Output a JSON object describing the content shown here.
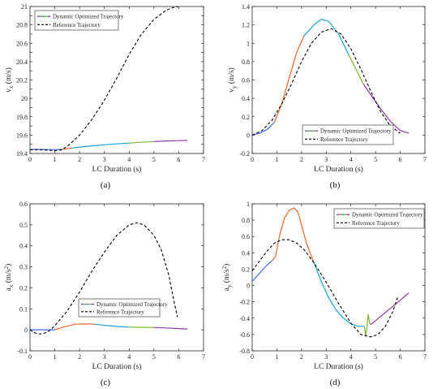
{
  "chart_data": [
    {
      "type": "line",
      "panel": "a",
      "caption": "(a)",
      "xlabel": "LC Duration (s)",
      "ylabel": "v",
      "ylabel_sub": "x",
      "ylabel_unit": "(m/s)",
      "xlim": [
        0,
        7
      ],
      "ylim": [
        19.4,
        21
      ],
      "x_ticks": [
        0,
        1,
        2,
        3,
        4,
        5,
        6,
        7
      ],
      "y_ticks": [
        19.4,
        19.5,
        19.6,
        19.7,
        19.8,
        19.9,
        20,
        20.1,
        20.2,
        20.3,
        20.4,
        20.5,
        20.6,
        20.7,
        20.8,
        20.9,
        21
      ],
      "x_tick_labels": [
        "0",
        "1",
        "2",
        "3",
        "4",
        "5",
        "6",
        "7"
      ],
      "y_tick_labels": [
        "19.4",
        "19.6",
        "19.8",
        "20",
        "20.2",
        "20.4",
        "20.6",
        "20.8",
        "21"
      ],
      "legend_position": "top-left",
      "legend": [
        "Dynamic Optimized Trajectory",
        "Reference Trajectory"
      ],
      "series": [
        {
          "name": "Dynamic Optimized Trajectory",
          "style": "solid-multicolor",
          "segments": [
            {
              "color": "#4169e1",
              "x": [
                0,
                0.4,
                0.8,
                1.1,
                1.3
              ],
              "y": [
                19.445,
                19.444,
                19.442,
                19.443,
                19.446
              ]
            },
            {
              "color": "#e8692c",
              "x": [
                1.3,
                1.5,
                1.7
              ],
              "y": [
                19.446,
                19.452,
                19.46
              ]
            },
            {
              "color": "#1ba0d8",
              "x": [
                1.7,
                2.2,
                2.8,
                3.4,
                4.0
              ],
              "y": [
                19.46,
                19.475,
                19.49,
                19.503,
                19.513
              ]
            },
            {
              "color": "#7ab833",
              "x": [
                4.0,
                4.5,
                5.0
              ],
              "y": [
                19.513,
                19.522,
                19.53
              ]
            },
            {
              "color": "#8e3aa0",
              "x": [
                5.0,
                5.5,
                6.0,
                6.35
              ],
              "y": [
                19.53,
                19.536,
                19.54,
                19.542
              ]
            }
          ]
        },
        {
          "name": "Reference Trajectory",
          "style": "dashed",
          "color": "#000000",
          "x": [
            0,
            0.5,
            1.0,
            1.3,
            1.6,
            2.0,
            2.5,
            3.0,
            3.5,
            4.0,
            4.5,
            5.0,
            5.5,
            5.8,
            6.0
          ],
          "y": [
            19.44,
            19.44,
            19.43,
            19.44,
            19.5,
            19.6,
            19.77,
            19.98,
            20.22,
            20.48,
            20.7,
            20.86,
            20.96,
            20.99,
            21.0
          ]
        }
      ]
    },
    {
      "type": "line",
      "panel": "b",
      "caption": "(b)",
      "xlabel": "LC Duration (s)",
      "ylabel": "v",
      "ylabel_sub": "y",
      "ylabel_unit": "(m/s)",
      "xlim": [
        0,
        7
      ],
      "ylim": [
        -0.2,
        1.4
      ],
      "x_ticks": [
        0,
        1,
        2,
        3,
        4,
        5,
        6,
        7
      ],
      "y_ticks": [
        -0.2,
        0,
        0.2,
        0.4,
        0.6,
        0.8,
        1.0,
        1.2,
        1.4
      ],
      "x_tick_labels": [
        "0",
        "1",
        "2",
        "3",
        "4",
        "5",
        "6",
        "7"
      ],
      "y_tick_labels": [
        "-0.2",
        "0",
        "0.2",
        "0.4",
        "0.6",
        "0.8",
        "1",
        "1.2",
        "1.4"
      ],
      "legend_position": "bottom-right",
      "legend": [
        "Dynamic Optimized Trajectory",
        "Reference Trajectory"
      ],
      "series": [
        {
          "name": "Dynamic Optimized Trajectory",
          "style": "solid-multicolor",
          "segments": [
            {
              "color": "#4169e1",
              "x": [
                0,
                0.3,
                0.6,
                0.9
              ],
              "y": [
                0,
                0.02,
                0.06,
                0.14
              ]
            },
            {
              "color": "#e8692c",
              "x": [
                0.9,
                1.2,
                1.5,
                1.8,
                2.1
              ],
              "y": [
                0.14,
                0.34,
                0.62,
                0.9,
                1.08
              ]
            },
            {
              "color": "#1ba0d8",
              "x": [
                2.1,
                2.5,
                2.8,
                3.1,
                3.5,
                3.9
              ],
              "y": [
                1.08,
                1.2,
                1.26,
                1.24,
                1.1,
                0.88
              ]
            },
            {
              "color": "#7ab833",
              "x": [
                3.9,
                4.2,
                4.5
              ],
              "y": [
                0.88,
                0.72,
                0.56
              ]
            },
            {
              "color": "#8e3aa0",
              "x": [
                4.5,
                4.8,
                5.2,
                5.6,
                6.0,
                6.35
              ],
              "y": [
                0.56,
                0.44,
                0.29,
                0.15,
                0.05,
                0.02
              ]
            }
          ]
        },
        {
          "name": "Reference Trajectory",
          "style": "dashed",
          "color": "#000000",
          "x": [
            0,
            0.4,
            0.8,
            1.2,
            1.6,
            2.0,
            2.4,
            2.8,
            3.2,
            3.6,
            4.0,
            4.4,
            4.8,
            5.2,
            5.6,
            6.0
          ],
          "y": [
            0,
            0.05,
            0.16,
            0.34,
            0.56,
            0.8,
            1.0,
            1.12,
            1.16,
            1.1,
            0.94,
            0.72,
            0.48,
            0.26,
            0.1,
            0.02
          ]
        }
      ]
    },
    {
      "type": "line",
      "panel": "c",
      "caption": "(c)",
      "xlabel": "LC Duration (s)",
      "ylabel": "a",
      "ylabel_sub": "x",
      "ylabel_unit": "(m/s",
      "ylabel_unit_sup": "2",
      "ylabel_unit_end": ")",
      "xlim": [
        0,
        7
      ],
      "ylim": [
        -0.1,
        0.6
      ],
      "x_ticks": [
        0,
        1,
        2,
        3,
        4,
        5,
        6,
        7
      ],
      "y_ticks": [
        -0.1,
        0,
        0.1,
        0.2,
        0.3,
        0.4,
        0.5,
        0.6
      ],
      "x_tick_labels": [
        "0",
        "1",
        "2",
        "3",
        "4",
        "5",
        "6",
        "7"
      ],
      "y_tick_labels": [
        "-0.1",
        "0",
        "0.1",
        "0.2",
        "0.3",
        "0.4",
        "0.5",
        "0.6"
      ],
      "legend_position": "center-right",
      "legend": [
        "Dynamic Optimized Trajectory",
        "Reference Trajectory"
      ],
      "series": [
        {
          "name": "Dynamic Optimized Trajectory",
          "style": "solid-multicolor",
          "segments": [
            {
              "color": "#4169e1",
              "x": [
                0,
                0.5,
                1.0
              ],
              "y": [
                0,
                0,
                0
              ]
            },
            {
              "color": "#e8692c",
              "x": [
                1.0,
                1.4,
                1.8,
                2.2,
                2.6
              ],
              "y": [
                0,
                0.015,
                0.027,
                0.028,
                0.027
              ]
            },
            {
              "color": "#1ba0d8",
              "x": [
                2.6,
                3.0,
                3.5,
                4.0
              ],
              "y": [
                0.027,
                0.022,
                0.016,
                0.013
              ]
            },
            {
              "color": "#7ab833",
              "x": [
                4.0,
                4.5,
                5.0
              ],
              "y": [
                0.013,
                0.012,
                0.011
              ]
            },
            {
              "color": "#8e3aa0",
              "x": [
                5.0,
                5.5,
                6.0,
                6.35
              ],
              "y": [
                0.011,
                0.009,
                0.006,
                0.004
              ]
            }
          ]
        },
        {
          "name": "Reference Trajectory",
          "style": "dashed",
          "color": "#000000",
          "x": [
            0,
            0.2,
            0.4,
            0.6,
            0.8,
            1.0,
            1.5,
            2.0,
            2.5,
            3.0,
            3.5,
            4.0,
            4.3,
            4.6,
            5.0,
            5.3,
            5.6,
            5.8,
            5.95
          ],
          "y": [
            0,
            -0.015,
            -0.02,
            -0.015,
            -0.003,
            0.02,
            0.09,
            0.18,
            0.28,
            0.37,
            0.45,
            0.5,
            0.51,
            0.5,
            0.45,
            0.38,
            0.26,
            0.14,
            0.06
          ]
        }
      ]
    },
    {
      "type": "line",
      "panel": "d",
      "caption": "(d)",
      "xlabel": "LC Duration (s)",
      "ylabel": "a",
      "ylabel_sub": "y",
      "ylabel_unit": "(m/s",
      "ylabel_unit_sup": "2",
      "ylabel_unit_end": ")",
      "xlim": [
        0,
        7
      ],
      "ylim": [
        -0.8,
        1.0
      ],
      "x_ticks": [
        0,
        1,
        2,
        3,
        4,
        5,
        6,
        7
      ],
      "y_ticks": [
        -0.8,
        -0.6,
        -0.4,
        -0.2,
        0,
        0.2,
        0.4,
        0.6,
        0.8,
        1.0
      ],
      "x_tick_labels": [
        "0",
        "1",
        "2",
        "3",
        "4",
        "5",
        "6",
        "7"
      ],
      "y_tick_labels": [
        "-0.8",
        "-0.6",
        "-0.4",
        "-0.2",
        "0",
        "0.2",
        "0.4",
        "0.6",
        "0.8",
        "1"
      ],
      "legend_position": "top-right",
      "legend": [
        "Dynamic Optimized Trajectory",
        "Reference Trajectory"
      ],
      "series": [
        {
          "name": "Dynamic Optimized Trajectory",
          "style": "solid-multicolor",
          "segments": [
            {
              "color": "#4169e1",
              "x": [
                0,
                0.3,
                0.6,
                0.8
              ],
              "y": [
                0.05,
                0.15,
                0.25,
                0.3
              ]
            },
            {
              "color": "#e8692c",
              "x": [
                0.8,
                0.95,
                1.1,
                1.3,
                1.5,
                1.7,
                1.85,
                2.0,
                2.2,
                2.5
              ],
              "y": [
                0.3,
                0.36,
                0.6,
                0.82,
                0.92,
                0.95,
                0.9,
                0.74,
                0.52,
                0.28
              ]
            },
            {
              "color": "#1ba0d8",
              "x": [
                2.5,
                2.8,
                3.1,
                3.4,
                3.7,
                4.0,
                4.3,
                4.55
              ],
              "y": [
                0.28,
                0.05,
                -0.15,
                -0.3,
                -0.4,
                -0.47,
                -0.5,
                -0.5
              ]
            },
            {
              "color": "#7ab833",
              "x": [
                4.55,
                4.6,
                4.65,
                4.7,
                4.75,
                4.8
              ],
              "y": [
                -0.5,
                -0.62,
                -0.52,
                -0.35,
                -0.45,
                -0.48
              ]
            },
            {
              "color": "#8e3aa0",
              "x": [
                4.8,
                5.2,
                5.6,
                6.0,
                6.35
              ],
              "y": [
                -0.48,
                -0.38,
                -0.28,
                -0.18,
                -0.09
              ]
            }
          ]
        },
        {
          "name": "Reference Trajectory",
          "style": "dashed",
          "color": "#000000",
          "x": [
            0,
            0.3,
            0.6,
            0.9,
            1.2,
            1.5,
            1.8,
            2.1,
            2.5,
            3.0,
            3.5,
            4.0,
            4.4,
            4.8,
            5.1,
            5.4,
            5.7,
            5.9
          ],
          "y": [
            0.18,
            0.3,
            0.42,
            0.52,
            0.56,
            0.56,
            0.52,
            0.44,
            0.28,
            0.04,
            -0.22,
            -0.46,
            -0.6,
            -0.63,
            -0.6,
            -0.5,
            -0.32,
            -0.14
          ]
        }
      ]
    }
  ]
}
